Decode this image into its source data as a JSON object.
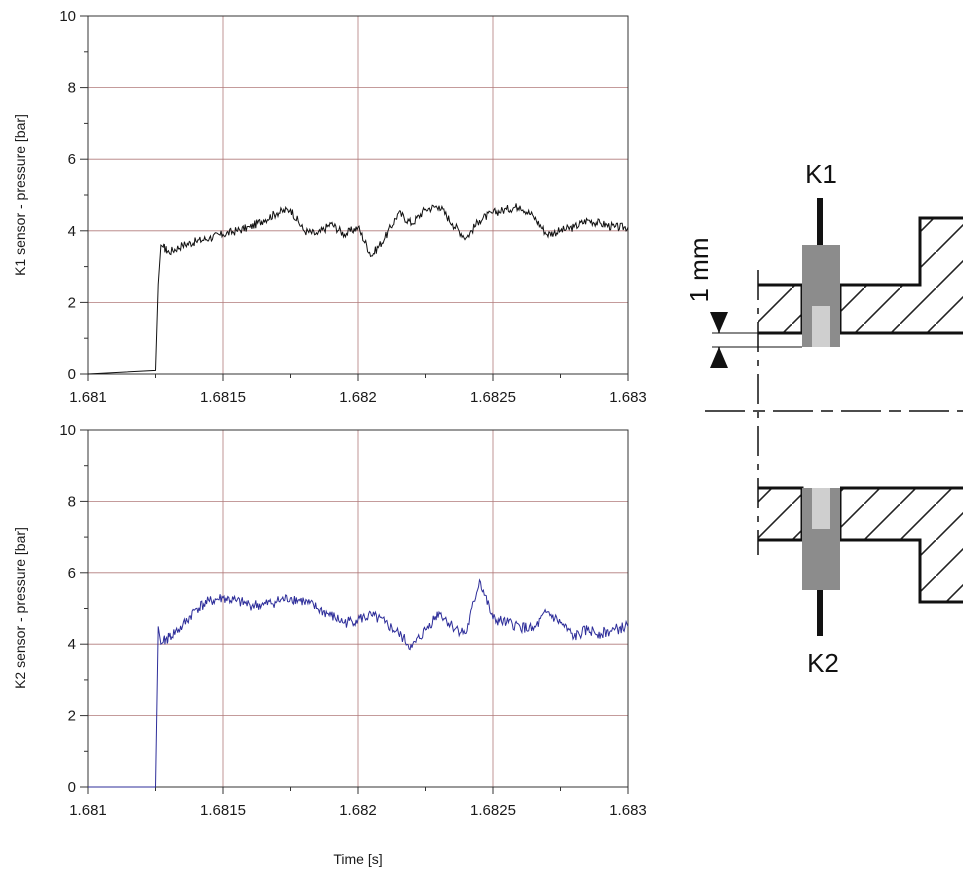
{
  "chart_data": [
    {
      "type": "line",
      "title": "",
      "xlabel": "",
      "ylabel": "K1 sensor - pressure [bar]",
      "xlim": [
        1.681,
        1.683
      ],
      "ylim": [
        0,
        10
      ],
      "xticks": [
        "1.681",
        "1.6815",
        "1.682",
        "1.6825",
        "1.683"
      ],
      "xtick_values": [
        1.681,
        1.6815,
        1.682,
        1.6825,
        1.683
      ],
      "yticks": [
        "0",
        "2",
        "4",
        "6",
        "8",
        "10"
      ],
      "ytick_values": [
        0,
        2,
        4,
        6,
        8,
        10
      ],
      "grid": true,
      "series": [
        {
          "color": "#111111",
          "x": [
            1.681,
            1.68125,
            1.68126,
            1.68127,
            1.6813,
            1.68135,
            1.6814,
            1.68145,
            1.6815,
            1.68155,
            1.6816,
            1.68165,
            1.6817,
            1.68175,
            1.6818,
            1.68185,
            1.6819,
            1.68195,
            1.682,
            1.68205,
            1.6821,
            1.68215,
            1.6822,
            1.68225,
            1.6823,
            1.68235,
            1.6824,
            1.68245,
            1.6825,
            1.68255,
            1.6826,
            1.68265,
            1.6827,
            1.68275,
            1.6828,
            1.68285,
            1.6829,
            1.68295,
            1.683
          ],
          "y": [
            0.0,
            0.1,
            2.5,
            3.6,
            3.4,
            3.6,
            3.7,
            3.8,
            3.9,
            4.0,
            4.1,
            4.3,
            4.5,
            4.6,
            4.0,
            3.9,
            4.2,
            3.9,
            4.1,
            3.3,
            3.8,
            4.5,
            4.2,
            4.6,
            4.7,
            4.2,
            3.8,
            4.3,
            4.5,
            4.6,
            4.7,
            4.4,
            3.9,
            4.0,
            4.1,
            4.3,
            4.2,
            4.1,
            4.1
          ]
        }
      ]
    },
    {
      "type": "line",
      "title": "",
      "xlabel": "Time [s]",
      "ylabel": "K2 sensor - pressure [bar]",
      "xlim": [
        1.681,
        1.683
      ],
      "ylim": [
        0,
        10
      ],
      "xticks": [
        "1.681",
        "1.6815",
        "1.682",
        "1.6825",
        "1.683"
      ],
      "xtick_values": [
        1.681,
        1.6815,
        1.682,
        1.6825,
        1.683
      ],
      "yticks": [
        "0",
        "2",
        "4",
        "6",
        "8",
        "10"
      ],
      "ytick_values": [
        0,
        2,
        4,
        6,
        8,
        10
      ],
      "grid": true,
      "series": [
        {
          "color": "#2e2e9a",
          "x": [
            1.681,
            1.68125,
            1.68126,
            1.68127,
            1.6813,
            1.68135,
            1.6814,
            1.68145,
            1.6815,
            1.68155,
            1.6816,
            1.68165,
            1.6817,
            1.68175,
            1.6818,
            1.68185,
            1.6819,
            1.68195,
            1.682,
            1.68205,
            1.6821,
            1.68215,
            1.6822,
            1.68225,
            1.6823,
            1.68235,
            1.6824,
            1.68245,
            1.6825,
            1.68255,
            1.6826,
            1.68265,
            1.6827,
            1.68275,
            1.6828,
            1.68285,
            1.6829,
            1.68295,
            1.683
          ],
          "y": [
            0.0,
            0.0,
            4.5,
            4.0,
            4.2,
            4.5,
            5.0,
            5.2,
            5.3,
            5.2,
            5.1,
            5.1,
            5.2,
            5.3,
            5.2,
            5.0,
            4.8,
            4.6,
            4.7,
            4.8,
            4.6,
            4.3,
            3.9,
            4.4,
            4.9,
            4.5,
            4.3,
            5.8,
            4.7,
            4.6,
            4.5,
            4.4,
            4.9,
            4.6,
            4.2,
            4.4,
            4.3,
            4.4,
            4.5
          ]
        }
      ]
    }
  ],
  "diagram": {
    "label_top": "K1",
    "label_bottom": "K2",
    "dimension_label": "1 mm"
  }
}
